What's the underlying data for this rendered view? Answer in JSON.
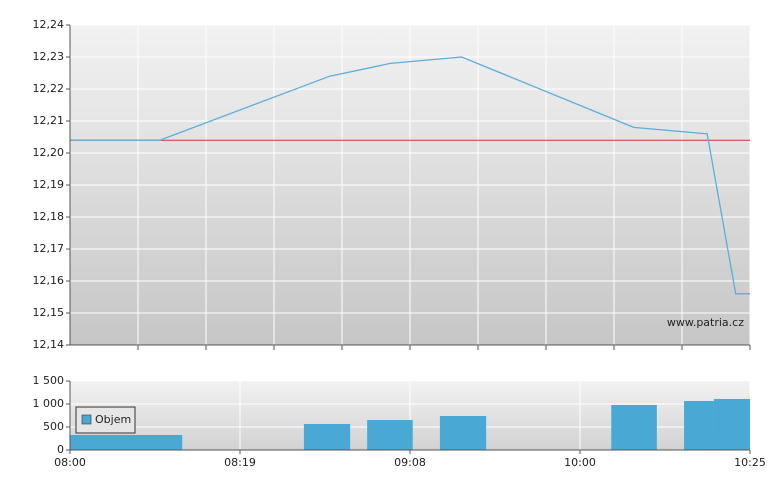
{
  "chart_data": [
    {
      "type": "line",
      "watermark": "www.patria.cz",
      "x": [
        0,
        13.2,
        38.2,
        47.1,
        57.6,
        82.9,
        93.7,
        97.9,
        100
      ],
      "series": [
        {
          "color": "#5aaedb",
          "values": [
            12.204,
            12.204,
            12.224,
            12.228,
            12.23,
            12.208,
            12.206,
            12.156,
            12.156
          ]
        }
      ],
      "reference_line": {
        "value": 12.204,
        "color": "#e03030"
      },
      "xlim": [
        0,
        100
      ],
      "grid_x": [
        10,
        20,
        30,
        40,
        50,
        60,
        70,
        80,
        90,
        100
      ],
      "ylim": [
        12.14,
        12.24
      ],
      "yticks": [
        {
          "value": 12.14,
          "label": "12,14"
        },
        {
          "value": 12.15,
          "label": "12,15"
        },
        {
          "value": 12.16,
          "label": "12,16"
        },
        {
          "value": 12.17,
          "label": "12,17"
        },
        {
          "value": 12.18,
          "label": "12,18"
        },
        {
          "value": 12.19,
          "label": "12,19"
        },
        {
          "value": 12.2,
          "label": "12,20"
        },
        {
          "value": 12.21,
          "label": "12,21"
        },
        {
          "value": 12.22,
          "label": "12,22"
        },
        {
          "value": 12.23,
          "label": "12,23"
        },
        {
          "value": 12.24,
          "label": "12,24"
        }
      ],
      "grid": true
    },
    {
      "type": "bar",
      "legend": "upper left",
      "series": [
        {
          "name": "Objem",
          "color": "#4aa8d4",
          "x_start": [
            0,
            34.4,
            43.7,
            54.4,
            79.6,
            90.3,
            94.7
          ],
          "x_end": [
            16.5,
            41.2,
            50.4,
            61.2,
            86.3,
            94.7,
            100
          ],
          "values": [
            326,
            565,
            652,
            739,
            978,
            1065,
            1109
          ]
        }
      ],
      "xlim": [
        0,
        100
      ],
      "xticks": [
        {
          "value": 0,
          "label": "08:00"
        },
        {
          "value": 25,
          "label": "08:19"
        },
        {
          "value": 50,
          "label": "09:08"
        },
        {
          "value": 75,
          "label": "10:00"
        },
        {
          "value": 100,
          "label": "10:25"
        }
      ],
      "ylim": [
        0,
        1500
      ],
      "yticks": [
        0,
        500,
        {
          "value": 1000,
          "label": "1 000"
        },
        {
          "value": 1500,
          "label": "1 500"
        }
      ],
      "grid": true
    }
  ]
}
